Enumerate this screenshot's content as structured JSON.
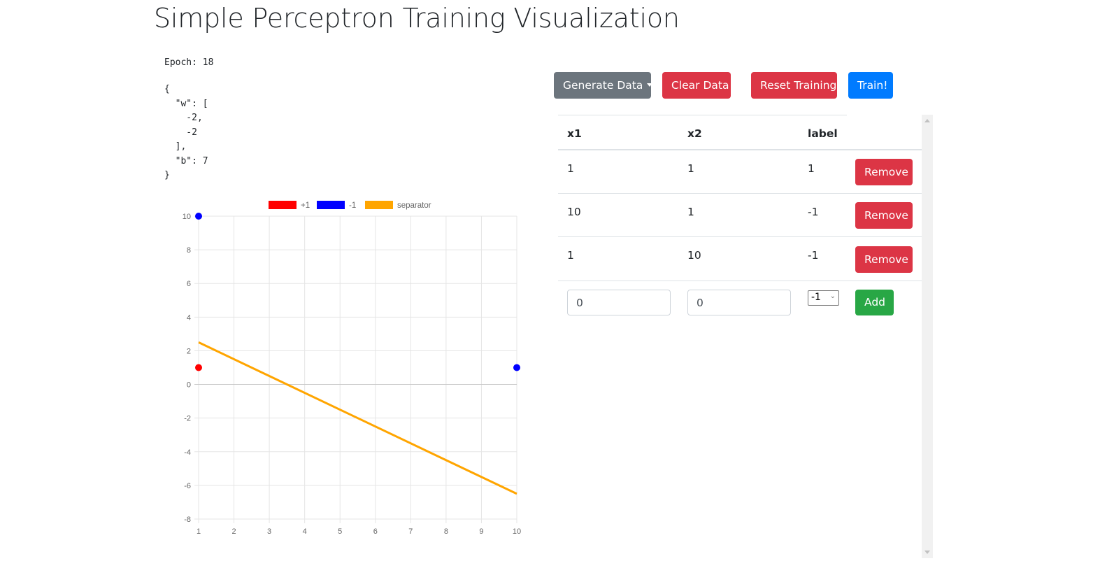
{
  "title": "Simple Perceptron Training Visualization",
  "epoch_text": "Epoch: 18",
  "state_json": "{\n  \"w\": [\n    -2,\n    -2\n  ],\n  \"b\": 7\n}",
  "toolbar": {
    "generate_label": "Generate Data",
    "clear_label": "Clear Data",
    "reset_label": "Reset Training",
    "train_label": "Train!"
  },
  "table": {
    "headers": [
      "x1",
      "x2",
      "label"
    ],
    "rows": [
      {
        "x1": "1",
        "x2": "1",
        "label": "1",
        "action": "Remove"
      },
      {
        "x1": "10",
        "x2": "1",
        "label": "-1",
        "action": "Remove"
      },
      {
        "x1": "1",
        "x2": "10",
        "label": "-1",
        "action": "Remove"
      }
    ],
    "new_row": {
      "x1": "0",
      "x2": "0",
      "label": "-1",
      "add_label": "Add"
    }
  },
  "colors": {
    "positive": "#ff0000",
    "negative": "#0000ff",
    "separator": "#ffa500",
    "danger": "#dc3545",
    "primary": "#007bff",
    "secondary": "#6c757d",
    "success": "#28a745"
  },
  "chart_data": {
    "type": "scatter",
    "title": "",
    "xlabel": "",
    "ylabel": "",
    "legend": [
      "+1",
      "-1",
      "separator"
    ],
    "legend_position": "top",
    "grid": true,
    "xlim": [
      1,
      10
    ],
    "ylim": [
      -8,
      10
    ],
    "x_ticks": [
      "1",
      "2",
      "3",
      "4",
      "5",
      "6",
      "7",
      "8",
      "9",
      "10"
    ],
    "y_ticks": [
      "10",
      "8",
      "6",
      "4",
      "2",
      "0",
      "-2",
      "-4",
      "-6",
      "-8"
    ],
    "series": [
      {
        "name": "+1",
        "type": "scatter",
        "color": "#ff0000",
        "points": [
          [
            1,
            1
          ]
        ]
      },
      {
        "name": "-1",
        "type": "scatter",
        "color": "#0000ff",
        "points": [
          [
            10,
            1
          ],
          [
            1,
            10
          ]
        ]
      },
      {
        "name": "separator",
        "type": "line",
        "color": "#ffa500",
        "points": [
          [
            1,
            2.5
          ],
          [
            10,
            -6.5
          ]
        ]
      }
    ]
  }
}
